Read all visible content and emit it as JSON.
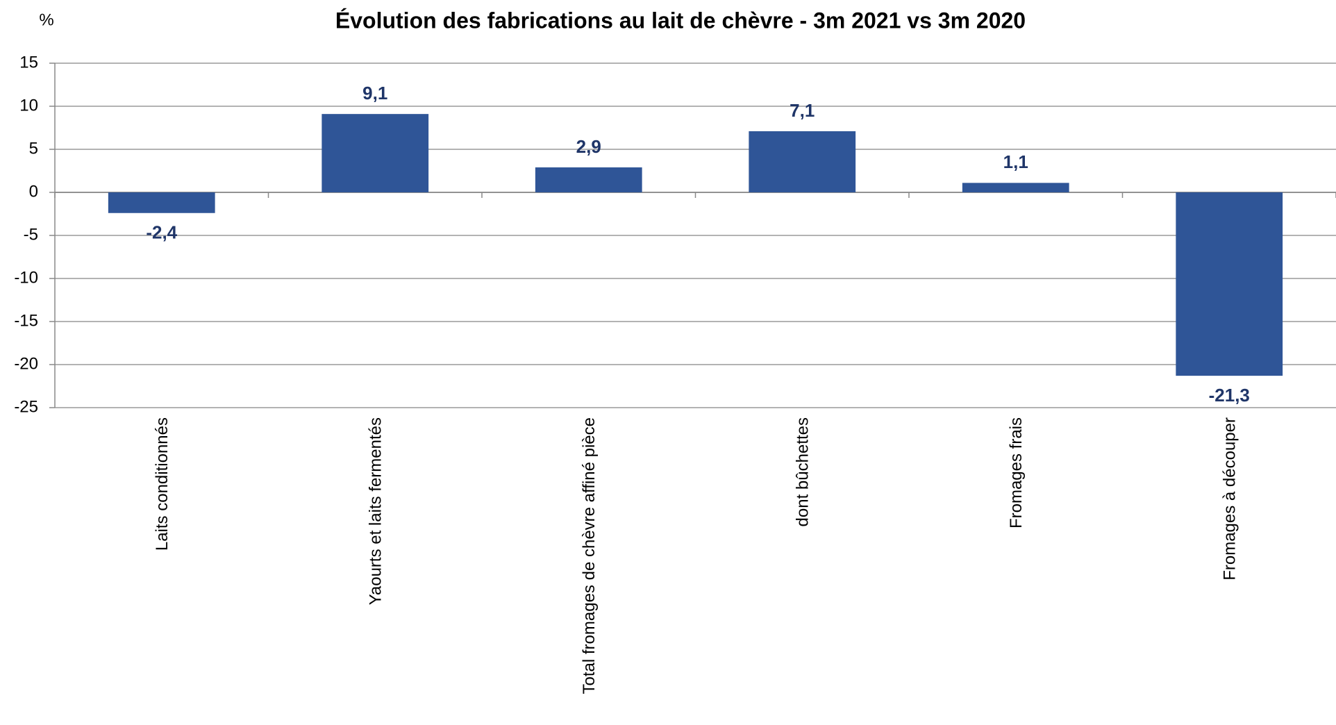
{
  "chart_data": {
    "type": "bar",
    "title": "Évolution des fabrications au lait de chèvre - 3m 2021 vs 3m 2020",
    "y_label": "%",
    "categories": [
      "Laits conditionnés",
      "Yaourts et laits fermentés",
      "Total fromages de chèvre affiné pièce",
      "dont bûchettes",
      "Fromages frais",
      "Fromages à découper"
    ],
    "values": [
      -2.4,
      9.1,
      2.9,
      7.1,
      1.1,
      -21.3
    ],
    "value_labels": [
      "-2,4",
      "9,1",
      "2,9",
      "7,1",
      "1,1",
      "-21,3"
    ],
    "color": "#2f5597",
    "ylim": [
      -25,
      15
    ],
    "yticks": [
      -25,
      -20,
      -15,
      -10,
      -5,
      0,
      5,
      10,
      15
    ],
    "grid": true
  }
}
